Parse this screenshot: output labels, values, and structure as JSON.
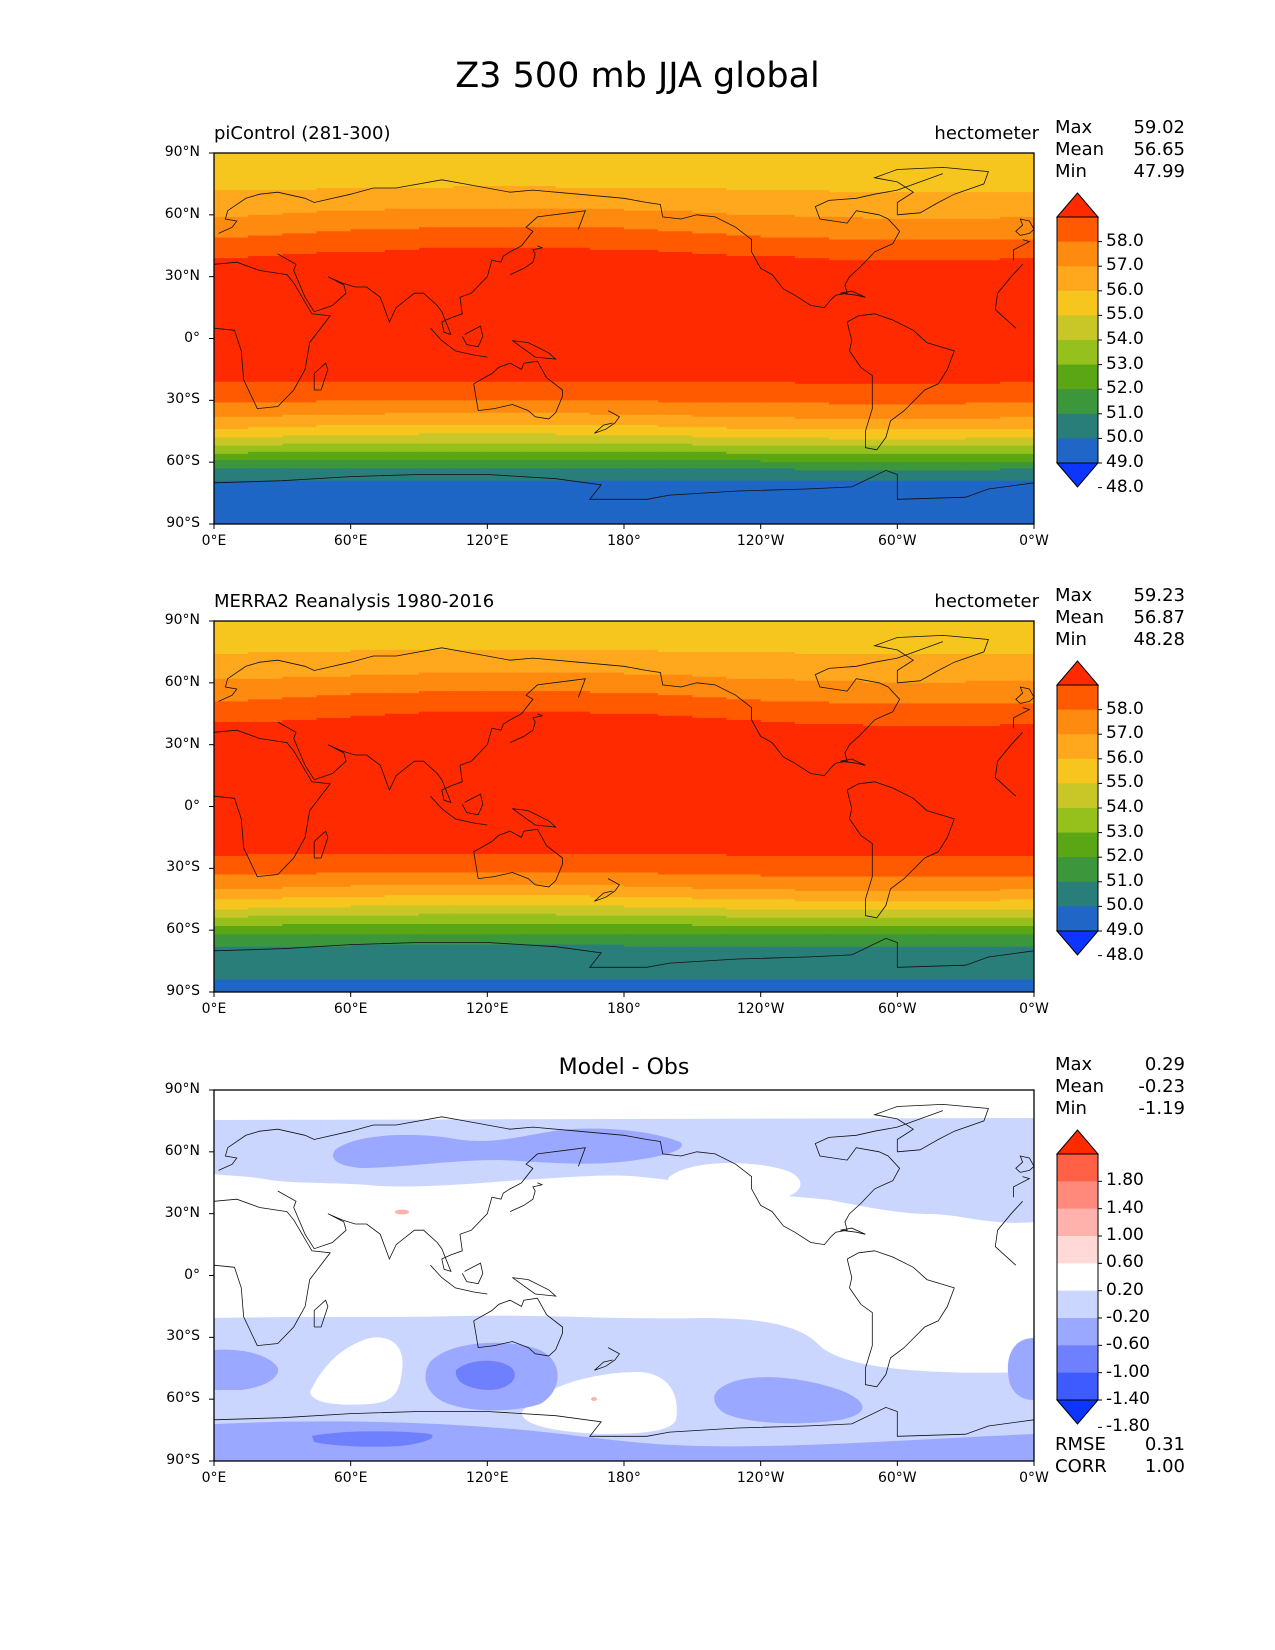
{
  "figure_title": "Z3 500 mb JJA global",
  "panels": [
    {
      "left_title": "piControl (281-300)",
      "right_title": "hectometer",
      "stats": {
        "max_label": "Max",
        "max": "59.02",
        "mean_label": "Mean",
        "mean": "56.65",
        "min_label": "Min",
        "min": "47.99"
      }
    },
    {
      "left_title": "MERRA2 Reanalysis 1980-2016",
      "right_title": "hectometer",
      "stats": {
        "max_label": "Max",
        "max": "59.23",
        "mean_label": "Mean",
        "mean": "56.87",
        "min_label": "Min",
        "min": "48.28"
      }
    },
    {
      "center_title": "Model - Obs",
      "stats": {
        "max_label": "Max",
        "max": "0.29",
        "mean_label": "Mean",
        "mean": "-0.23",
        "min_label": "Min",
        "min": "-1.19"
      },
      "metrics": {
        "rmse_label": "RMSE",
        "rmse": "0.31",
        "corr_label": "CORR",
        "corr": "1.00"
      }
    }
  ],
  "axes": {
    "lat_ticks": [
      "90°N",
      "60°N",
      "30°N",
      "0°",
      "30°S",
      "60°S",
      "90°S"
    ],
    "lon_ticks": [
      "0°E",
      "60°E",
      "120°E",
      "180°",
      "120°W",
      "60°W",
      "0°W"
    ]
  },
  "colorbars": {
    "field": {
      "labels": [
        "58.0",
        "57.0",
        "56.0",
        "55.0",
        "54.0",
        "53.0",
        "52.0",
        "51.0",
        "50.0",
        "49.0",
        "48.0"
      ],
      "colors_top_to_bottom": [
        "#ff2a00",
        "#ff5a00",
        "#ff8a10",
        "#ffa81e",
        "#f6c61f",
        "#c9c728",
        "#96c01c",
        "#5aa614",
        "#3c963c",
        "#2a7e7a",
        "#1f66c6",
        "#0c35ff"
      ]
    },
    "diff": {
      "labels": [
        "1.80",
        "1.40",
        "1.00",
        "0.60",
        "0.20",
        "-0.20",
        "-0.60",
        "-1.00",
        "-1.40",
        "-1.80"
      ],
      "colors_top_to_bottom": [
        "#ff2a00",
        "#ff6046",
        "#ff8a7c",
        "#ffb2ab",
        "#ffd9d5",
        "#ffffff",
        "#cbd6ff",
        "#9ba8ff",
        "#6f80ff",
        "#3d5bff",
        "#0c35ff"
      ]
    }
  },
  "chart_data": [
    {
      "type": "heatmap",
      "title": "piControl (281-300)",
      "units": "hectometer",
      "lat_range": [
        -90,
        90
      ],
      "lon_range": [
        0,
        360
      ],
      "contour_levels": [
        48,
        49,
        50,
        51,
        52,
        53,
        54,
        55,
        56,
        57,
        58
      ],
      "zonal_profile": {
        "lat": [
          90,
          85,
          80,
          75,
          70,
          65,
          60,
          55,
          50,
          45,
          40,
          35,
          30,
          25,
          20,
          15,
          10,
          5,
          0,
          -5,
          -10,
          -15,
          -20,
          -25,
          -30,
          -35,
          -40,
          -45,
          -50,
          -55,
          -60,
          -65,
          -70,
          -75,
          -80,
          -85,
          -90
        ],
        "value": [
          54.3,
          54.4,
          54.5,
          54.8,
          55.2,
          55.6,
          56.1,
          56.6,
          57.1,
          57.6,
          58.1,
          58.4,
          58.6,
          58.7,
          58.7,
          58.7,
          58.6,
          58.6,
          58.6,
          58.5,
          58.4,
          58.3,
          58.1,
          57.7,
          57.1,
          56.4,
          55.6,
          54.6,
          53.4,
          52.1,
          50.8,
          49.6,
          48.8,
          48.4,
          48.2,
          48.1,
          48.0
        ]
      },
      "stats": {
        "max": 59.02,
        "mean": 56.65,
        "min": 47.99
      }
    },
    {
      "type": "heatmap",
      "title": "MERRA2 Reanalysis 1980-2016",
      "units": "hectometer",
      "lat_range": [
        -90,
        90
      ],
      "lon_range": [
        0,
        360
      ],
      "contour_levels": [
        48,
        49,
        50,
        51,
        52,
        53,
        54,
        55,
        56,
        57,
        58
      ],
      "zonal_profile": {
        "lat": [
          90,
          85,
          80,
          75,
          70,
          65,
          60,
          55,
          50,
          45,
          40,
          35,
          30,
          25,
          20,
          15,
          10,
          5,
          0,
          -5,
          -10,
          -15,
          -20,
          -25,
          -30,
          -35,
          -40,
          -45,
          -50,
          -55,
          -60,
          -65,
          -70,
          -75,
          -80,
          -85,
          -90
        ],
        "value": [
          54.4,
          54.5,
          54.7,
          55.0,
          55.4,
          55.8,
          56.3,
          56.8,
          57.3,
          57.8,
          58.2,
          58.5,
          58.7,
          58.8,
          58.8,
          58.8,
          58.8,
          58.8,
          58.8,
          58.7,
          58.6,
          58.4,
          58.2,
          57.9,
          57.4,
          56.7,
          55.9,
          54.9,
          53.8,
          52.6,
          51.4,
          50.4,
          49.6,
          49.2,
          49.0,
          48.8,
          48.5
        ]
      },
      "stats": {
        "max": 59.23,
        "mean": 56.87,
        "min": 48.28
      }
    },
    {
      "type": "heatmap",
      "title": "Model - Obs",
      "lat_range": [
        -90,
        90
      ],
      "lon_range": [
        0,
        360
      ],
      "contour_levels": [
        -1.8,
        -1.4,
        -1.0,
        -0.6,
        -0.2,
        0.2,
        0.6,
        1.0,
        1.4,
        1.8
      ],
      "stats": {
        "max": 0.29,
        "mean": -0.23,
        "min": -1.19,
        "rmse": 0.31,
        "corr": 1.0
      }
    }
  ]
}
